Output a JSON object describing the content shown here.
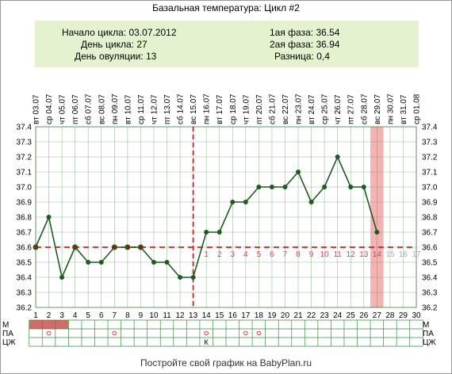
{
  "title": "Базальная температура: Цикл #2",
  "summary": {
    "left": [
      {
        "label": "Начало цикла:",
        "value": "03.07.2012"
      },
      {
        "label": "День цикла:",
        "value": "27"
      },
      {
        "label": "День овуляции:",
        "value": "13"
      }
    ],
    "right": [
      {
        "label": "1ая фаза:",
        "value": "36.54"
      },
      {
        "label": "2ая фаза:",
        "value": "36.94"
      },
      {
        "label": "Разница:",
        "value": "0,4"
      }
    ]
  },
  "footer": "Постройте свой график на BabyPlan.ru",
  "colors": {
    "line": "#1f5a1f",
    "coverline": "#d21f1f",
    "ovulation": "#d21f1f",
    "current_day": "#f4b3b3",
    "summary_bg": "#e5f2d0",
    "grid": "#3f8a3f",
    "period_fill": "#d46a6a"
  },
  "chart_data": {
    "type": "line",
    "dates": [
      "03.07",
      "04.07",
      "05.07",
      "06.07",
      "07.07",
      "08.07",
      "09.07",
      "10.07",
      "11.07",
      "12.07",
      "13.07",
      "14.07",
      "15.07",
      "16.07",
      "17.07",
      "18.07",
      "19.07",
      "20.07",
      "21.07",
      "22.07",
      "23.07",
      "24.07",
      "25.07",
      "26.07",
      "27.07",
      "28.07",
      "29.07",
      "30.07",
      "31.07",
      "01.08"
    ],
    "weekdays": [
      "вт",
      "ср",
      "чт",
      "пт",
      "сб",
      "вс",
      "пн",
      "вт",
      "ср",
      "чт",
      "пт",
      "сб",
      "вс",
      "пн",
      "вт",
      "ср",
      "чт",
      "пт",
      "сб",
      "вс",
      "пн",
      "вт",
      "ср",
      "чт",
      "пт",
      "сб",
      "вс",
      "пн",
      "вт",
      "ср"
    ],
    "days": [
      1,
      2,
      3,
      4,
      5,
      6,
      7,
      8,
      9,
      10,
      11,
      12,
      13,
      14,
      15,
      16,
      17,
      18,
      19,
      20,
      21,
      22,
      23,
      24,
      25,
      26,
      27,
      28,
      29,
      30
    ],
    "values": [
      36.6,
      36.8,
      36.4,
      36.6,
      36.5,
      36.5,
      36.6,
      36.6,
      36.6,
      36.5,
      36.5,
      36.4,
      36.4,
      36.7,
      36.7,
      36.9,
      36.9,
      37.0,
      37.0,
      37.0,
      37.1,
      36.9,
      37.0,
      37.2,
      37.0,
      37.0,
      36.7,
      null,
      null,
      null
    ],
    "marked_points": [
      1,
      4,
      7,
      8,
      9
    ],
    "ylim": [
      36.2,
      37.4
    ],
    "yticks": [
      "36.2",
      "36.3",
      "36.4",
      "36.5",
      "36.6",
      "36.7",
      "36.8",
      "36.9",
      "37.0",
      "37.1",
      "37.2",
      "37.3",
      "37.4"
    ],
    "coverline": 36.6,
    "ovulation_day": 13,
    "current_day": 27,
    "luteal_labels": [
      "1",
      "2",
      "3",
      "4",
      "5",
      "6",
      "7",
      "8",
      "9",
      "10",
      "11",
      "12",
      "13",
      "14",
      "15",
      "16",
      "17"
    ],
    "luteal_start_day": 14,
    "luteal_past_count": 14
  },
  "bottom_rows": {
    "labels": [
      "М",
      "ПА",
      "ЦЖ"
    ],
    "menstruation_days": [
      1,
      2,
      3
    ],
    "pa_marker": "○",
    "pa_days": [
      2,
      7,
      14,
      17,
      18
    ],
    "cj_marker": "К",
    "cj_days": [
      14
    ]
  }
}
